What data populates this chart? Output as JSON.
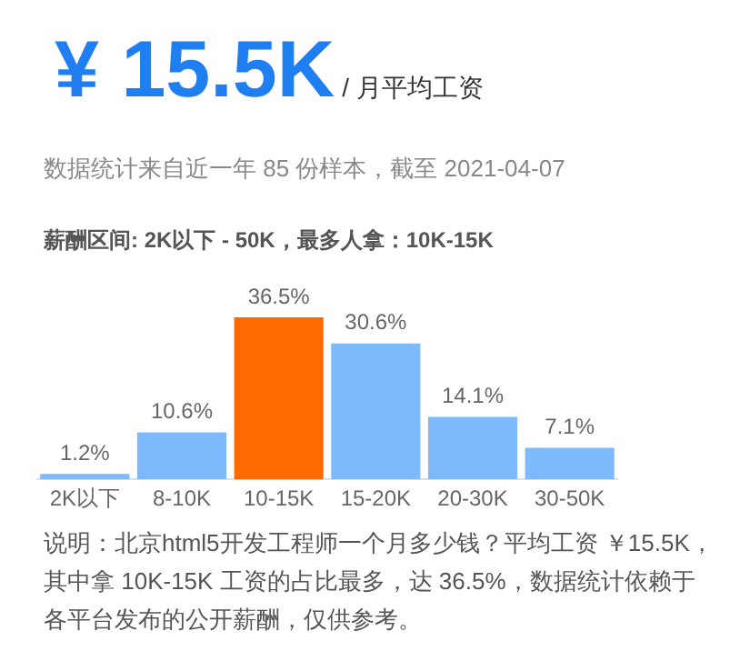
{
  "chart_data": {
    "type": "bar",
    "title": "¥ 15.5K",
    "subtitle": "/ 月平均工资",
    "annotations": [
      "数据统计来自近一年 85 份样本，截至 2021-04-07",
      "薪酬区间: 2K以下 - 50K，最多人拿：10K-15K",
      "说明：北京html5开发工程师一个月多少钱？平均工资 ￥15.5K，其中拿 10K-15K 工资的占比最多，达 36.5%，数据统计依赖于各平台发布的公开薪酬，仅供参考。"
    ],
    "categories": [
      "2K以下",
      "8-10K",
      "10-15K",
      "15-20K",
      "20-30K",
      "30-50K"
    ],
    "values": [
      1.2,
      10.6,
      36.5,
      30.6,
      14.1,
      7.1
    ],
    "colors": [
      "#7db9fb",
      "#7db9fb",
      "#ff6a00",
      "#7db9fb",
      "#7db9fb",
      "#7db9fb"
    ],
    "value_labels": [
      "1.2%",
      "10.6%",
      "36.5%",
      "30.6%",
      "14.1%",
      "7.1%"
    ],
    "grid": false,
    "legend": false
  }
}
